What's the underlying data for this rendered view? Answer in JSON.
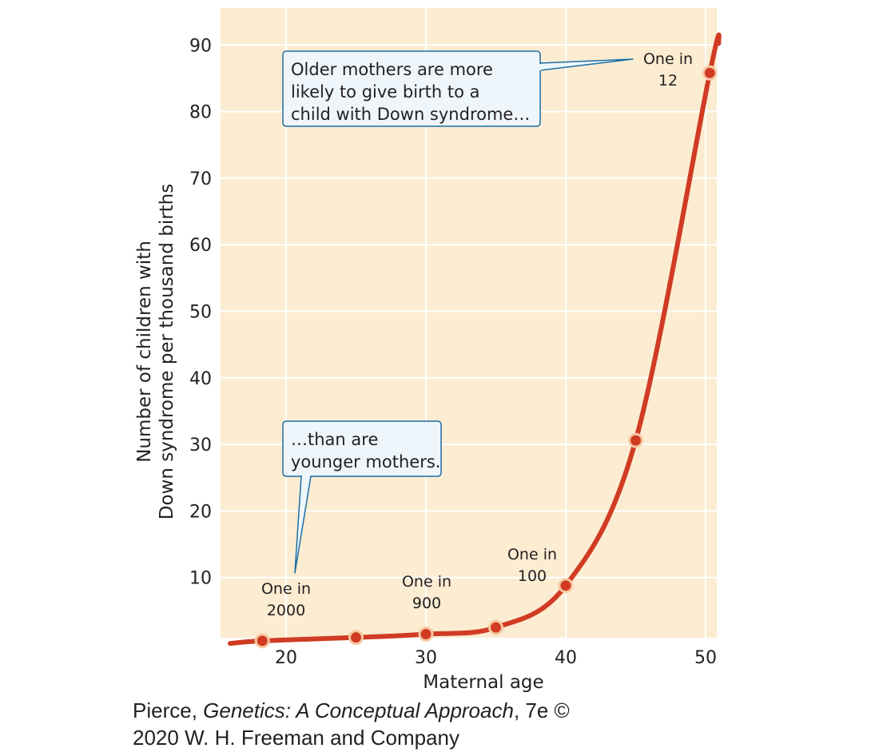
{
  "chart_data": {
    "type": "line",
    "xlabel": "Maternal age",
    "ylabel": [
      "Number of children with",
      "Down syndrome per thousand births"
    ],
    "xlim": [
      15.5,
      51
    ],
    "ylim": [
      0,
      95
    ],
    "xticks": [
      20,
      30,
      40,
      50
    ],
    "yticks": [
      10,
      20,
      30,
      40,
      50,
      60,
      70,
      80,
      90
    ],
    "grid": true,
    "colors": {
      "plot_bg": "#fbecd2",
      "line": "#d13b23",
      "callout_bg": "#eef6fb",
      "callout_border": "#1d6ea3",
      "grid": "#ffffff"
    },
    "x": [
      18.3,
      25,
      30,
      35,
      40,
      45,
      50.3
    ],
    "y": [
      0.5,
      1.0,
      1.5,
      2.5,
      8.8,
      30.6,
      85.8
    ],
    "point_labels": [
      {
        "lines": [
          "One in",
          "2000"
        ]
      },
      {
        "lines": [
          "One in",
          "900"
        ]
      },
      {
        "lines": [
          "One in",
          "100"
        ]
      },
      {
        "lines": [
          "One in",
          "12"
        ]
      }
    ],
    "annotations": [
      {
        "lines": [
          "Older mothers are more",
          "likely to give birth to a",
          "child with Down syndrome…"
        ]
      },
      {
        "lines": [
          "…than are",
          "younger mothers."
        ]
      }
    ]
  },
  "credit": {
    "line1_prefix": "Pierce, ",
    "line1_title": "Genetics: A Conceptual Approach",
    "line1_suffix": ", 7e ©",
    "line2": "2020 W. H. Freeman and Company"
  }
}
